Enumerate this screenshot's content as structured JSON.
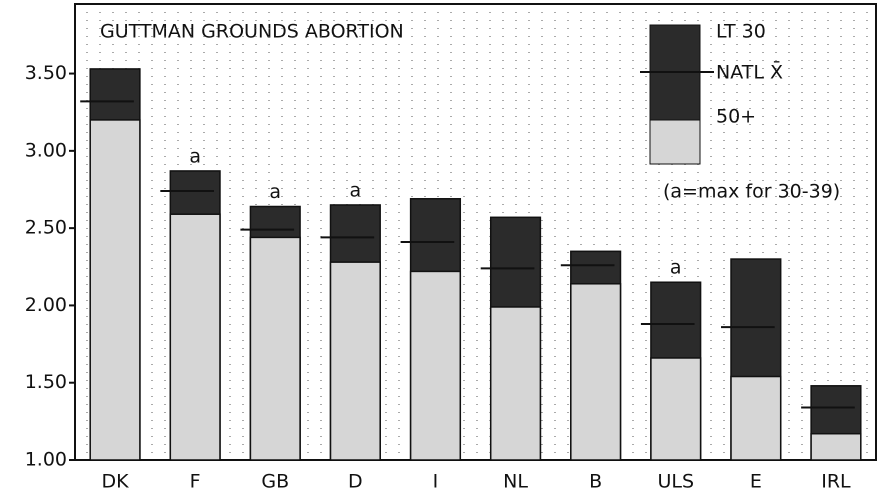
{
  "chart_data": {
    "type": "bar",
    "title": "GUTTMAN GROUNDS ABORTION",
    "categories": [
      "DK",
      "F",
      "GB",
      "D",
      "I",
      "NL",
      "B",
      "ULS",
      "E",
      "IRL"
    ],
    "series": [
      {
        "name": "LT 30",
        "color": "#2b2b2b",
        "values": [
          3.53,
          2.87,
          2.64,
          2.65,
          2.69,
          2.57,
          2.35,
          2.15,
          2.3,
          1.48
        ]
      },
      {
        "name": "NATL X̄",
        "color": "#111111",
        "values": [
          3.32,
          2.74,
          2.49,
          2.44,
          2.41,
          2.24,
          2.26,
          1.88,
          1.86,
          1.34
        ]
      },
      {
        "name": "50+",
        "color": "#d6d6d6",
        "values": [
          3.2,
          2.59,
          2.44,
          2.28,
          2.22,
          1.99,
          2.14,
          1.66,
          1.54,
          1.17
        ]
      }
    ],
    "annotations": [
      null,
      "a",
      "a",
      "a",
      null,
      null,
      null,
      "a",
      null,
      null
    ],
    "note": "(a=max for 30-39)",
    "ylim": [
      1.0,
      3.95
    ],
    "yticks": [
      {
        "value": 1.0,
        "label": "1.00"
      },
      {
        "value": 1.5,
        "label": "1.50"
      },
      {
        "value": 2.0,
        "label": "2.00"
      },
      {
        "value": 2.5,
        "label": "2.50"
      },
      {
        "value": 3.0,
        "label": "3.00"
      },
      {
        "value": 3.5,
        "label": "3.50"
      }
    ],
    "grid": true
  }
}
